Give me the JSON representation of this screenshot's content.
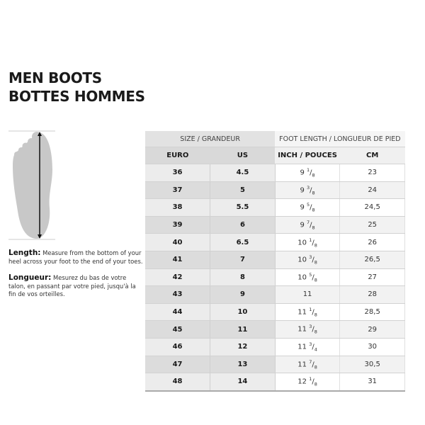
{
  "title": {
    "line1": "MEN BOOTS",
    "line2": "BOTTES HOMMES"
  },
  "instructions": {
    "length_label": "Length:",
    "length_text": "Measure from the bottom of your heel across your foot to the end of your toes.",
    "longueur_label": "Longueur:",
    "longueur_text": "Mesurez du bas de votre talon, en passant par votre pied, jusqu'à la fin de vos orteilles."
  },
  "table": {
    "group_headers": [
      "SIZE / GRANDEUR",
      "FOOT LENGTH / LONGUEUR DE PIED"
    ],
    "columns": [
      "EURO",
      "US",
      "INCH / POUCES",
      "CM"
    ],
    "rows": [
      {
        "euro": "36",
        "us": "4.5",
        "inch": "9",
        "num": "1",
        "den": "8",
        "cm": "23"
      },
      {
        "euro": "37",
        "us": "5",
        "inch": "9",
        "num": "3",
        "den": "8",
        "cm": "24"
      },
      {
        "euro": "38",
        "us": "5.5",
        "inch": "9",
        "num": "5",
        "den": "8",
        "cm": "24,5"
      },
      {
        "euro": "39",
        "us": "6",
        "inch": "9",
        "num": "7",
        "den": "8",
        "cm": "25"
      },
      {
        "euro": "40",
        "us": "6.5",
        "inch": "10",
        "num": "1",
        "den": "8",
        "cm": "26"
      },
      {
        "euro": "41",
        "us": "7",
        "inch": "10",
        "num": "3",
        "den": "8",
        "cm": "26,5"
      },
      {
        "euro": "42",
        "us": "8",
        "inch": "10",
        "num": "5",
        "den": "8",
        "cm": "27"
      },
      {
        "euro": "43",
        "us": "9",
        "inch": "11",
        "num": "",
        "den": "",
        "cm": "28"
      },
      {
        "euro": "44",
        "us": "10",
        "inch": "11",
        "num": "1",
        "den": "8",
        "cm": "28,5"
      },
      {
        "euro": "45",
        "us": "11",
        "inch": "11",
        "num": "3",
        "den": "8",
        "cm": "29"
      },
      {
        "euro": "46",
        "us": "12",
        "inch": "11",
        "num": "3",
        "den": "4",
        "cm": "30"
      },
      {
        "euro": "47",
        "us": "13",
        "inch": "11",
        "num": "7",
        "den": "8",
        "cm": "30,5"
      },
      {
        "euro": "48",
        "us": "14",
        "inch": "12",
        "num": "1",
        "den": "8",
        "cm": "31"
      }
    ]
  }
}
